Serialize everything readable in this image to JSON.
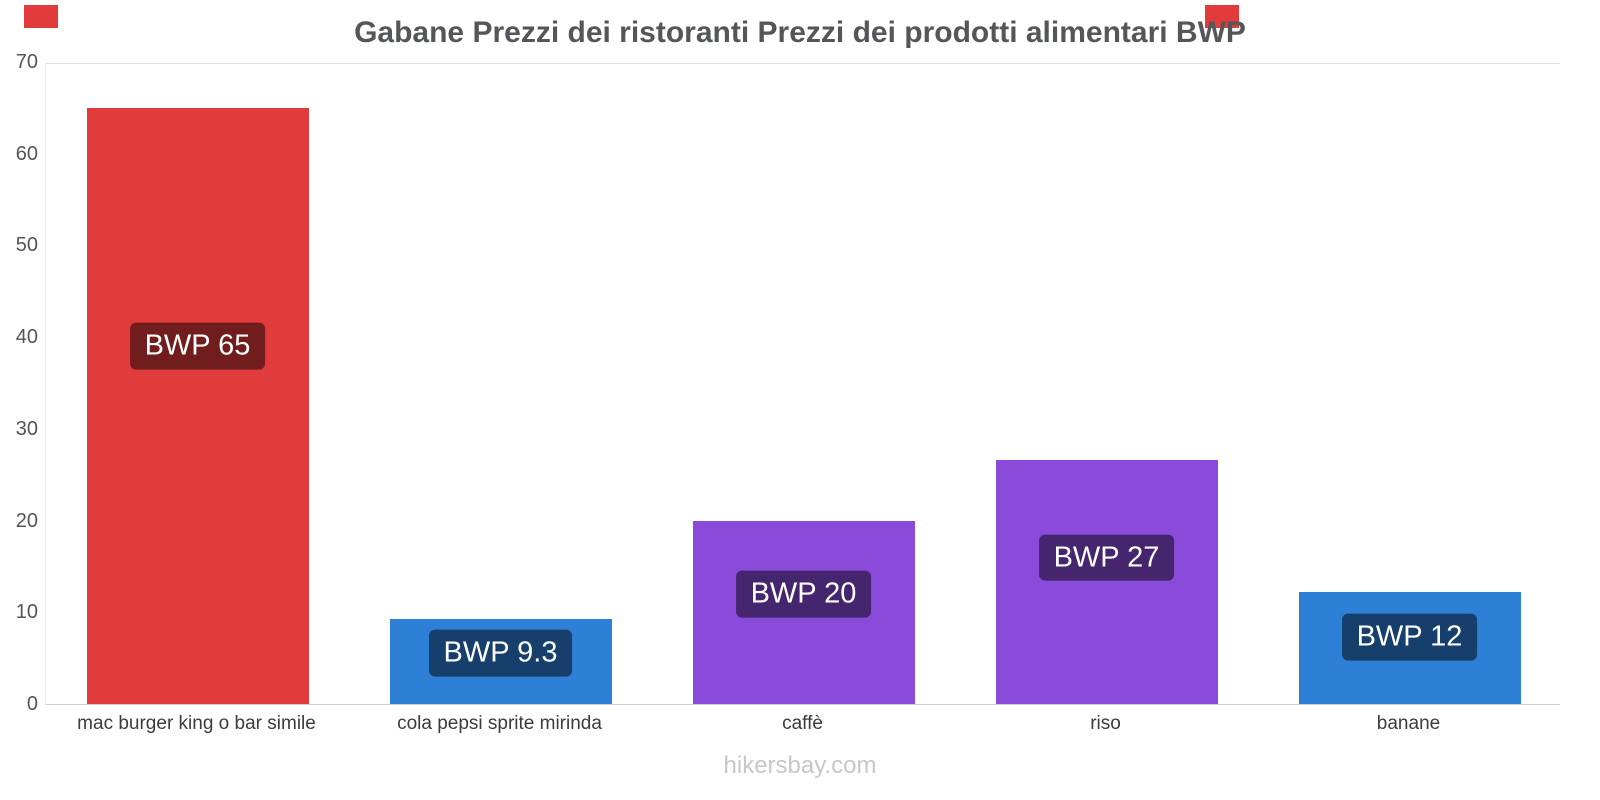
{
  "page": {
    "footer": "hikersbay.com",
    "decoration_color": "#e23b3b"
  },
  "chart_data": {
    "type": "bar",
    "title": "Gabane Prezzi dei ristoranti Prezzi dei prodotti alimentari BWP",
    "categories": [
      "mac burger king o bar simile",
      "cola pepsi sprite mirinda",
      "caffè",
      "riso",
      "banane"
    ],
    "values": [
      65,
      9.3,
      20,
      26.6,
      12.2
    ],
    "value_labels": [
      "BWP 65",
      "BWP 9.3",
      "BWP 20",
      "BWP 27",
      "BWP 12"
    ],
    "bar_colors": [
      "#e23b3b",
      "#2e7fd6",
      "#8a4bdb",
      "#8a4bdb",
      "#2e7fd6"
    ],
    "value_label_bg": "rgba(0,0,0,0.5)",
    "currency": "BWP",
    "xlabel": "",
    "ylabel": "",
    "ylim": [
      0,
      70
    ],
    "yticks": [
      0,
      10,
      20,
      30,
      40,
      50,
      60,
      70
    ],
    "legend": "none",
    "grid": false
  }
}
